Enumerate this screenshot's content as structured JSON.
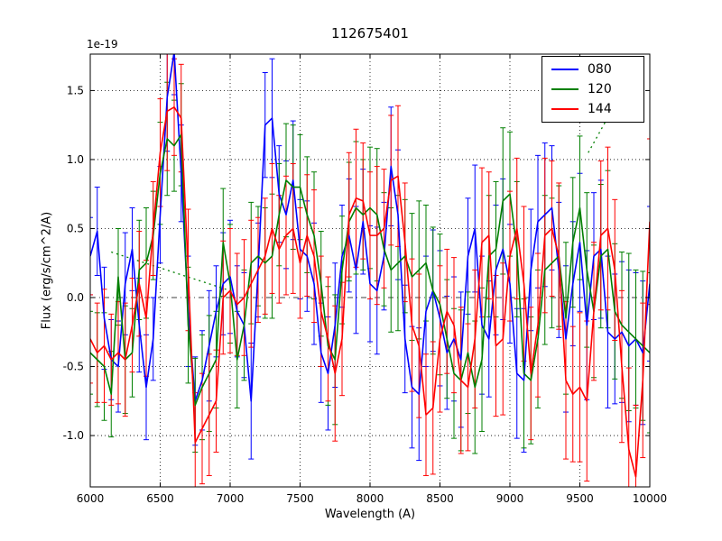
{
  "chart_data": {
    "type": "line",
    "title": "112675401",
    "xlabel": "Wavelength (A)",
    "ylabel": "Flux (erg/s/cm^2/A)",
    "offset_text": "1e-19",
    "xlim": [
      6000,
      10000
    ],
    "ylim": [
      -1.372,
      1.764
    ],
    "xticks": [
      6000,
      6500,
      7000,
      7500,
      8000,
      8500,
      9000,
      9500,
      10000
    ],
    "xtick_labels": [
      "6000",
      "6500",
      "7000",
      "7500",
      "8000",
      "8500",
      "9000",
      "9500",
      "10000"
    ],
    "yticks": [
      -1.0,
      -0.5,
      0.0,
      0.5,
      1.0,
      1.5
    ],
    "ytick_labels": [
      "-1.0",
      "-0.5",
      "0.0",
      "0.5",
      "1.0",
      "1.5"
    ],
    "grid": true,
    "zero_line_style": "dashdot",
    "legend_position": "upper right",
    "x": [
      6000,
      6050,
      6100,
      6150,
      6200,
      6250,
      6300,
      6350,
      6400,
      6450,
      6500,
      6550,
      6600,
      6650,
      6700,
      6750,
      6800,
      6850,
      6900,
      6950,
      7000,
      7050,
      7100,
      7150,
      7200,
      7250,
      7300,
      7350,
      7400,
      7450,
      7500,
      7550,
      7600,
      7650,
      7700,
      7750,
      7800,
      7850,
      7900,
      7950,
      8000,
      8050,
      8100,
      8150,
      8200,
      8250,
      8300,
      8350,
      8400,
      8450,
      8500,
      8550,
      8600,
      8650,
      8700,
      8750,
      8800,
      8850,
      8900,
      8950,
      9000,
      9050,
      9100,
      9150,
      9200,
      9250,
      9300,
      9350,
      9400,
      9450,
      9500,
      9550,
      9600,
      9650,
      9700,
      9750,
      9800,
      9850,
      9900,
      9950,
      10000
    ],
    "series": [
      {
        "name": "080",
        "color": "#0000ff",
        "values": [
          0.3,
          0.48,
          -0.15,
          -0.45,
          -0.5,
          0.1,
          0.35,
          -0.2,
          -0.65,
          -0.3,
          0.6,
          1.45,
          1.78,
          0.9,
          -0.1,
          -0.75,
          -0.6,
          -0.35,
          -0.1,
          0.1,
          0.15,
          -0.1,
          -0.2,
          -0.75,
          0.2,
          1.25,
          1.3,
          0.75,
          0.6,
          0.85,
          0.35,
          0.3,
          0.1,
          -0.4,
          -0.55,
          -0.2,
          0.3,
          0.45,
          0.2,
          0.55,
          0.1,
          0.05,
          0.3,
          0.95,
          0.6,
          -0.3,
          -0.65,
          -0.7,
          -0.1,
          0.05,
          -0.15,
          -0.4,
          -0.3,
          -0.45,
          0.3,
          0.5,
          -0.2,
          -0.3,
          0.2,
          0.35,
          0.1,
          -0.55,
          -0.6,
          0.2,
          0.55,
          0.6,
          0.65,
          0.2,
          -0.3,
          0.1,
          0.4,
          -0.2,
          0.3,
          0.35,
          -0.25,
          -0.3,
          -0.25,
          -0.35,
          -0.3,
          -0.4,
          0.1
        ],
        "errors": [
          0.28,
          0.32,
          0.37,
          0.29,
          0.33,
          0.37,
          0.3,
          0.34,
          0.38,
          0.3,
          0.35,
          0.39,
          0.31,
          0.35,
          0.4,
          0.32,
          0.36,
          0.4,
          0.33,
          0.37,
          0.41,
          0.33,
          0.38,
          0.42,
          0.34,
          0.38,
          0.43,
          0.35,
          0.39,
          0.43,
          0.36,
          0.4,
          0.44,
          0.36,
          0.41,
          0.45,
          0.37,
          0.41,
          0.46,
          0.38,
          0.42,
          0.46,
          0.39,
          0.43,
          0.47,
          0.39,
          0.44,
          0.48,
          0.4,
          0.44,
          0.49,
          0.41,
          0.45,
          0.49,
          0.42,
          0.46,
          0.5,
          0.42,
          0.47,
          0.51,
          0.43,
          0.47,
          0.52,
          0.44,
          0.48,
          0.52,
          0.45,
          0.49,
          0.53,
          0.45,
          0.5,
          0.54,
          0.46,
          0.5,
          0.55,
          0.47,
          0.51,
          0.55,
          0.48,
          0.52,
          0.56
        ]
      },
      {
        "name": "120",
        "color": "#007f00",
        "values": [
          -0.4,
          -0.45,
          -0.5,
          -0.7,
          0.15,
          -0.45,
          -0.4,
          0.2,
          0.25,
          0.45,
          0.9,
          1.15,
          1.1,
          1.18,
          -0.2,
          -0.78,
          -0.65,
          -0.55,
          -0.45,
          0.4,
          0.1,
          -0.45,
          -0.2,
          0.25,
          0.3,
          0.25,
          0.3,
          0.6,
          0.85,
          0.8,
          0.8,
          0.6,
          0.45,
          0.1,
          -0.35,
          -0.45,
          0.2,
          0.55,
          0.65,
          0.6,
          0.65,
          0.6,
          0.35,
          0.2,
          0.25,
          0.3,
          0.15,
          0.2,
          0.25,
          0.05,
          -0.05,
          -0.3,
          -0.55,
          -0.6,
          -0.4,
          -0.65,
          -0.45,
          0.3,
          0.35,
          0.7,
          0.75,
          0.35,
          -0.55,
          -0.6,
          -0.3,
          0.2,
          0.25,
          0.3,
          -0.15,
          0.4,
          0.65,
          0.2,
          -0.1,
          0.3,
          0.35,
          -0.1,
          -0.2,
          -0.25,
          -0.3,
          -0.35,
          -0.4
        ],
        "errors": [
          0.3,
          0.34,
          0.39,
          0.31,
          0.35,
          0.39,
          0.32,
          0.36,
          0.4,
          0.32,
          0.37,
          0.41,
          0.33,
          0.37,
          0.42,
          0.34,
          0.38,
          0.42,
          0.35,
          0.39,
          0.43,
          0.35,
          0.4,
          0.44,
          0.36,
          0.4,
          0.45,
          0.37,
          0.41,
          0.45,
          0.38,
          0.42,
          0.46,
          0.38,
          0.43,
          0.47,
          0.39,
          0.43,
          0.48,
          0.4,
          0.44,
          0.48,
          0.41,
          0.45,
          0.49,
          0.41,
          0.46,
          0.5,
          0.42,
          0.46,
          0.51,
          0.43,
          0.47,
          0.51,
          0.44,
          0.48,
          0.52,
          0.44,
          0.49,
          0.53,
          0.45,
          0.49,
          0.54,
          0.46,
          0.5,
          0.54,
          0.47,
          0.51,
          0.55,
          0.47,
          0.52,
          0.56,
          0.48,
          0.52,
          0.57,
          0.49,
          0.53,
          0.57,
          0.5,
          0.54,
          0.58
        ]
      },
      {
        "name": "144",
        "color": "#ff0000",
        "values": [
          -0.3,
          -0.4,
          -0.35,
          -0.45,
          -0.4,
          -0.45,
          -0.2,
          0.1,
          -0.15,
          0.5,
          1.05,
          1.35,
          1.38,
          1.3,
          0.2,
          -1.05,
          -0.95,
          -0.85,
          -0.75,
          0.0,
          0.05,
          -0.05,
          0.0,
          0.1,
          0.2,
          0.3,
          0.5,
          0.35,
          0.45,
          0.5,
          0.25,
          0.45,
          0.3,
          -0.1,
          -0.3,
          -0.55,
          -0.3,
          0.6,
          0.72,
          0.7,
          0.45,
          0.45,
          0.5,
          0.85,
          0.88,
          0.4,
          -0.2,
          -0.35,
          -0.85,
          -0.8,
          -0.3,
          -0.1,
          -0.2,
          -0.6,
          -0.65,
          -0.3,
          0.4,
          0.45,
          -0.35,
          -0.3,
          0.3,
          0.5,
          0.1,
          -0.55,
          -0.2,
          0.45,
          0.5,
          0.3,
          -0.6,
          -0.7,
          -0.65,
          -0.75,
          -0.1,
          0.45,
          0.5,
          0.2,
          -0.5,
          -1.1,
          -1.3,
          -0.6,
          0.55
        ],
        "errors": [
          0.32,
          0.36,
          0.41,
          0.33,
          0.37,
          0.41,
          0.34,
          0.38,
          0.42,
          0.34,
          0.39,
          0.43,
          0.35,
          0.39,
          0.44,
          0.36,
          0.4,
          0.44,
          0.37,
          0.41,
          0.45,
          0.37,
          0.42,
          0.46,
          0.38,
          0.42,
          0.47,
          0.39,
          0.43,
          0.47,
          0.4,
          0.44,
          0.48,
          0.4,
          0.45,
          0.49,
          0.41,
          0.45,
          0.5,
          0.42,
          0.46,
          0.5,
          0.43,
          0.47,
          0.51,
          0.43,
          0.48,
          0.52,
          0.44,
          0.48,
          0.53,
          0.45,
          0.49,
          0.53,
          0.46,
          0.5,
          0.54,
          0.46,
          0.51,
          0.55,
          0.47,
          0.51,
          0.56,
          0.48,
          0.52,
          0.56,
          0.49,
          0.53,
          0.57,
          0.49,
          0.54,
          0.58,
          0.5,
          0.54,
          0.59,
          0.51,
          0.55,
          0.59,
          0.52,
          0.56,
          0.6
        ]
      }
    ],
    "dotted_segments": [
      {
        "color": "#007f00",
        "points": [
          [
            6150,
            0.33
          ],
          [
            7000,
            0.05
          ]
        ]
      },
      {
        "color": "#007f00",
        "points": [
          [
            9560,
            1.05
          ],
          [
            10000,
            1.85
          ]
        ]
      }
    ]
  }
}
